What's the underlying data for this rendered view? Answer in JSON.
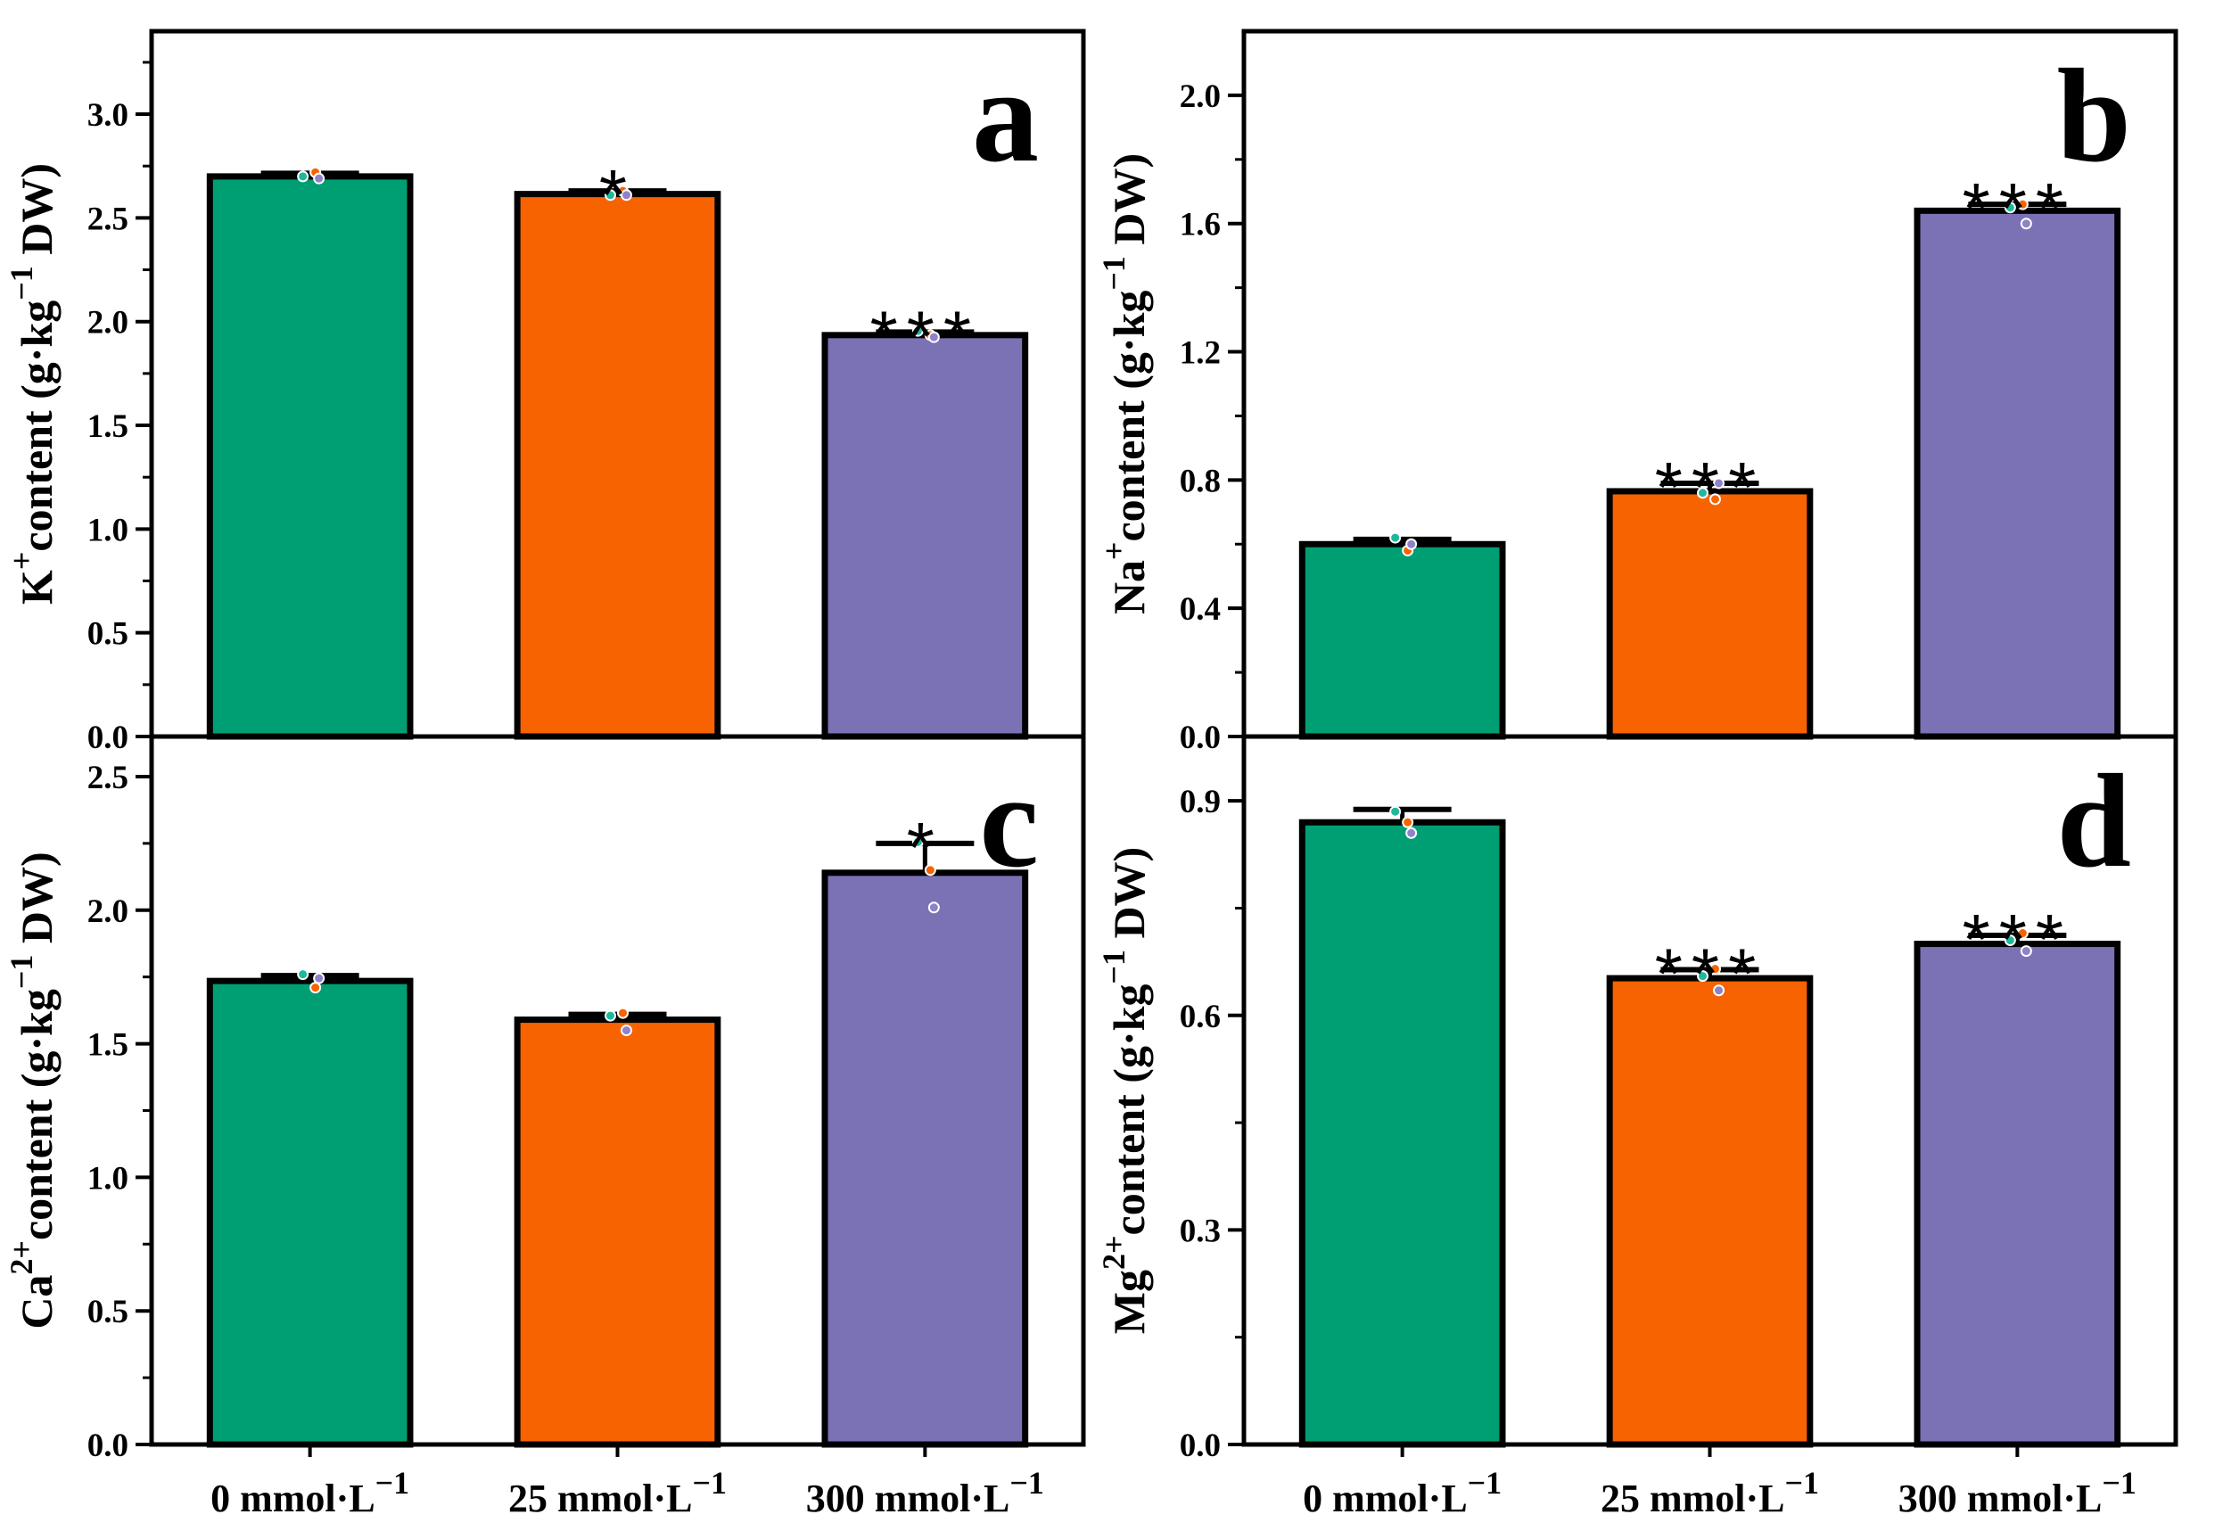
{
  "chart_data": [
    {
      "type": "bar",
      "panel_letter": "a",
      "categories": [
        "0 mmol·L",
        "25 mmol·L",
        "300 mmol·L"
      ],
      "category_exponent": "−1",
      "values": [
        2.7,
        2.615,
        1.935
      ],
      "errors": [
        0.015,
        0.015,
        0.015
      ],
      "points": [
        [
          2.7,
          2.72,
          2.69
        ],
        [
          2.61,
          2.63,
          2.61
        ],
        [
          1.955,
          1.935,
          1.925
        ]
      ],
      "significance": [
        "",
        "*",
        "***"
      ],
      "ylabel": {
        "base": "K",
        "sup": "+",
        "main": "content (g·kg",
        "exp": "−1",
        "tail": " DW)"
      },
      "ylim": [
        0,
        3.4
      ],
      "yticks": [
        0.0,
        0.5,
        1.0,
        1.5,
        2.0,
        2.5,
        3.0
      ],
      "ytick_labels": [
        "0.0",
        "0.5",
        "1.0",
        "1.5",
        "2.0",
        "2.5",
        "3.0"
      ]
    },
    {
      "type": "bar",
      "panel_letter": "b",
      "categories": [
        "0 mmol·L",
        "25 mmol·L",
        "300 mmol·L"
      ],
      "category_exponent": "−1",
      "values": [
        0.6,
        0.765,
        1.64
      ],
      "errors": [
        0.015,
        0.025,
        0.02
      ],
      "points": [
        [
          0.62,
          0.58,
          0.6
        ],
        [
          0.76,
          0.74,
          0.79
        ],
        [
          1.65,
          1.66,
          1.6
        ]
      ],
      "significance": [
        "",
        "***",
        "***"
      ],
      "ylabel": {
        "base": "Na",
        "sup": "+",
        "main": "content (g·kg",
        "exp": "−1",
        "tail": " DW)"
      },
      "ylim": [
        0,
        2.2
      ],
      "yticks": [
        0.0,
        0.4,
        0.8,
        1.2,
        1.6,
        2.0
      ],
      "ytick_labels": [
        "0.0",
        "0.4",
        "0.8",
        "1.2",
        "1.6",
        "2.0"
      ]
    },
    {
      "type": "bar",
      "panel_letter": "c",
      "categories": [
        "0 mmol·L",
        "25 mmol·L",
        "300 mmol·L"
      ],
      "category_exponent": "−1",
      "values": [
        1.735,
        1.59,
        2.14
      ],
      "errors": [
        0.02,
        0.02,
        0.11
      ],
      "points": [
        [
          1.76,
          1.71,
          1.745
        ],
        [
          1.605,
          1.615,
          1.55
        ],
        [
          2.255,
          2.15,
          2.01
        ]
      ],
      "significance": [
        "",
        "",
        "*"
      ],
      "ylabel": {
        "base": "Ca",
        "sup": "2+",
        "main": "content (g·kg",
        "exp": "−1",
        "tail": " DW)"
      },
      "ylim": [
        0,
        2.65
      ],
      "yticks": [
        0.0,
        0.5,
        1.0,
        1.5,
        2.0,
        2.5
      ],
      "ytick_labels": [
        "0.0",
        "0.5",
        "1.0",
        "1.5",
        "2.0",
        "2.5"
      ]
    },
    {
      "type": "bar",
      "panel_letter": "d",
      "categories": [
        "0 mmol·L",
        "25 mmol·L",
        "300 mmol·L"
      ],
      "category_exponent": "−1",
      "values": [
        0.87,
        0.652,
        0.7
      ],
      "errors": [
        0.018,
        0.012,
        0.012
      ],
      "points": [
        [
          0.885,
          0.87,
          0.855
        ],
        [
          0.655,
          0.665,
          0.635
        ],
        [
          0.705,
          0.715,
          0.69
        ]
      ],
      "significance": [
        "",
        "***",
        "***"
      ],
      "ylabel": {
        "base": "Mg",
        "sup": "2+",
        "main": "content (g·kg",
        "exp": "−1",
        "tail": " DW)"
      },
      "ylim": [
        0,
        0.99
      ],
      "yticks": [
        0.0,
        0.3,
        0.6,
        0.9
      ],
      "ytick_labels": [
        "0.0",
        "0.3",
        "0.6",
        "0.9"
      ]
    }
  ],
  "colors": {
    "bars": [
      "#009E73",
      "#F76300",
      "#7A72B5"
    ],
    "dots": [
      "#1FB89A",
      "#F76300",
      "#8E82C8"
    ],
    "axis": "#000000"
  }
}
